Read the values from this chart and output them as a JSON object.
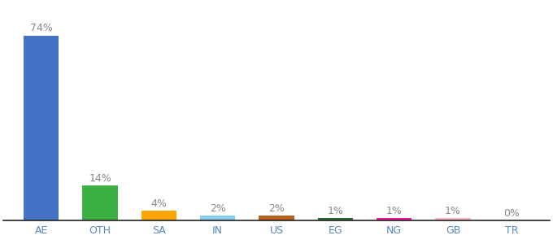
{
  "categories": [
    "AE",
    "OTH",
    "SA",
    "IN",
    "US",
    "EG",
    "NG",
    "GB",
    "TR"
  ],
  "values": [
    74,
    14,
    4,
    2,
    2,
    1,
    1,
    1,
    0
  ],
  "colors": [
    "#4472C4",
    "#3CB043",
    "#FFA500",
    "#87CEEB",
    "#B8601A",
    "#2E6B2E",
    "#FF1493",
    "#FFB6C1",
    "#FFFFFF"
  ],
  "labels": [
    "74%",
    "14%",
    "4%",
    "2%",
    "2%",
    "1%",
    "1%",
    "1%",
    "0%"
  ],
  "label_color": "#888888",
  "tick_color": "#5588BB",
  "label_fontsize": 9,
  "tick_fontsize": 9,
  "bar_width": 0.6,
  "ylim": [
    0,
    85
  ],
  "bg_color": "#ffffff",
  "spine_color": "#222222"
}
